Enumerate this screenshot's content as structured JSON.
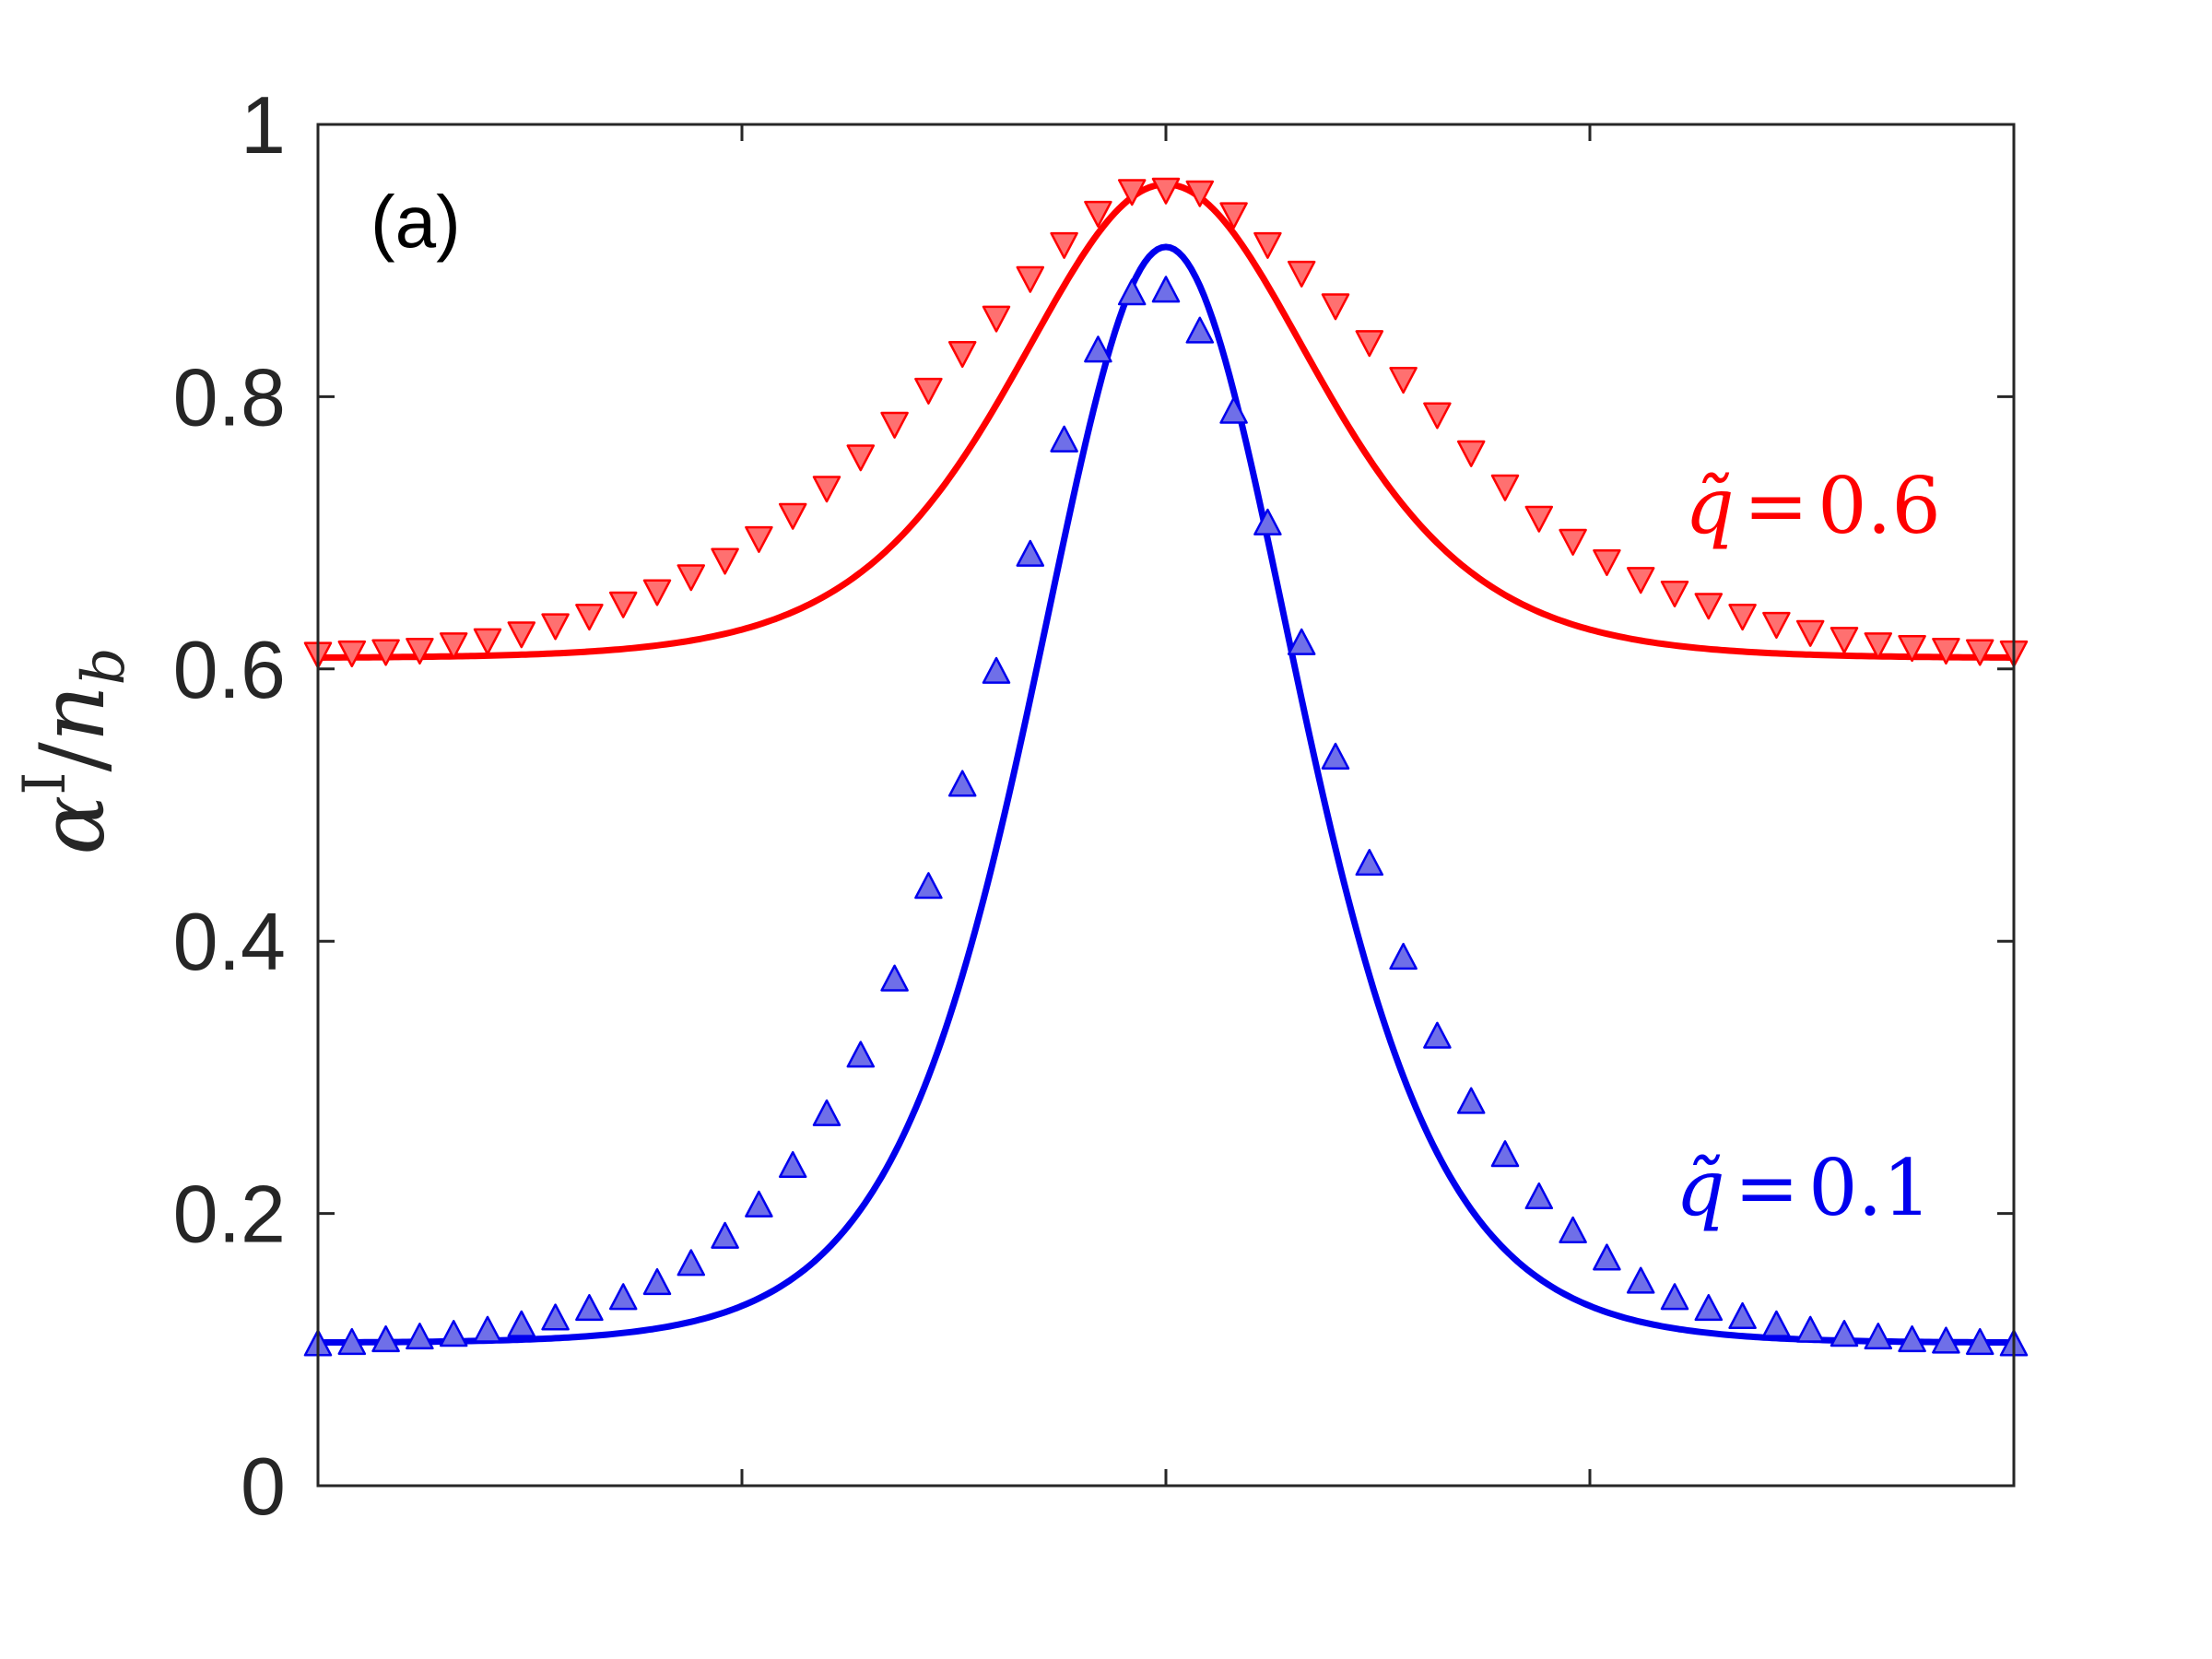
{
  "chart_data": {
    "type": "line",
    "panel_label": "(a)",
    "ylabel": "α^I / n_b",
    "xlabel": "",
    "xlim": [
      -1,
      1
    ],
    "ylim": [
      0,
      1
    ],
    "yticks": [
      0,
      0.2,
      0.4,
      0.6,
      0.8,
      1
    ],
    "ytick_labels": [
      "0",
      "0.2",
      "0.4",
      "0.6",
      "0.8",
      "1"
    ],
    "xticks": [
      -1,
      -0.5,
      0,
      0.5,
      1
    ],
    "grid": false,
    "series": [
      {
        "name": "q̃ = 0.6",
        "label_prefix": "q̃",
        "label_eq": "=",
        "label_value": "0.6",
        "color": "#ff0000",
        "marker_fill": "#ff7070",
        "marker": "triangle-down",
        "curve_model": {
          "baseline": 0.608,
          "amplitude": 0.348,
          "width": 0.24,
          "shape": "sech2"
        },
        "points_x": [
          -1.0,
          -0.96,
          -0.92,
          -0.88,
          -0.84,
          -0.8,
          -0.76,
          -0.72,
          -0.68,
          -0.64,
          -0.6,
          -0.56,
          -0.52,
          -0.48,
          -0.44,
          -0.4,
          -0.36,
          -0.32,
          -0.28,
          -0.24,
          -0.2,
          -0.16,
          -0.12,
          -0.08,
          -0.04,
          0.0,
          0.04,
          0.08,
          0.12,
          0.16,
          0.2,
          0.24,
          0.28,
          0.32,
          0.36,
          0.4,
          0.44,
          0.48,
          0.52,
          0.56,
          0.6,
          0.64,
          0.68,
          0.72,
          0.76,
          0.8,
          0.84,
          0.88,
          0.92,
          0.96,
          1.0
        ],
        "points_y": [
          0.611,
          0.612,
          0.613,
          0.614,
          0.618,
          0.621,
          0.626,
          0.632,
          0.639,
          0.648,
          0.657,
          0.668,
          0.68,
          0.696,
          0.713,
          0.733,
          0.756,
          0.78,
          0.805,
          0.832,
          0.858,
          0.887,
          0.912,
          0.935,
          0.951,
          0.952,
          0.95,
          0.934,
          0.912,
          0.891,
          0.867,
          0.84,
          0.813,
          0.787,
          0.759,
          0.734,
          0.711,
          0.694,
          0.679,
          0.666,
          0.656,
          0.647,
          0.639,
          0.633,
          0.627,
          0.622,
          0.618,
          0.616,
          0.614,
          0.613,
          0.612
        ]
      },
      {
        "name": "q̃ = 0.1",
        "label_prefix": "q̃",
        "label_eq": "=",
        "label_value": "0.1",
        "color": "#0000ee",
        "marker_fill": "#6f6fe8",
        "marker": "triangle-up",
        "curve_model": {
          "baseline": 0.105,
          "amplitude": 0.805,
          "width": 0.21,
          "shape": "sech2"
        },
        "points_x": [
          -1.0,
          -0.96,
          -0.92,
          -0.88,
          -0.84,
          -0.8,
          -0.76,
          -0.72,
          -0.68,
          -0.64,
          -0.6,
          -0.56,
          -0.52,
          -0.48,
          -0.44,
          -0.4,
          -0.36,
          -0.32,
          -0.28,
          -0.24,
          -0.2,
          -0.16,
          -0.12,
          -0.08,
          -0.04,
          0.0,
          0.04,
          0.08,
          0.12,
          0.16,
          0.2,
          0.24,
          0.28,
          0.32,
          0.36,
          0.4,
          0.44,
          0.48,
          0.52,
          0.56,
          0.6,
          0.64,
          0.68,
          0.72,
          0.76,
          0.8,
          0.84,
          0.88,
          0.92,
          0.96,
          1.0
        ],
        "points_y": [
          0.104,
          0.105,
          0.107,
          0.109,
          0.111,
          0.114,
          0.118,
          0.123,
          0.13,
          0.138,
          0.149,
          0.163,
          0.183,
          0.206,
          0.235,
          0.273,
          0.316,
          0.372,
          0.44,
          0.515,
          0.598,
          0.684,
          0.768,
          0.834,
          0.876,
          0.878,
          0.848,
          0.789,
          0.707,
          0.619,
          0.535,
          0.457,
          0.388,
          0.33,
          0.282,
          0.243,
          0.212,
          0.187,
          0.167,
          0.15,
          0.138,
          0.13,
          0.124,
          0.118,
          0.114,
          0.111,
          0.109,
          0.107,
          0.106,
          0.105,
          0.104
        ]
      }
    ]
  }
}
